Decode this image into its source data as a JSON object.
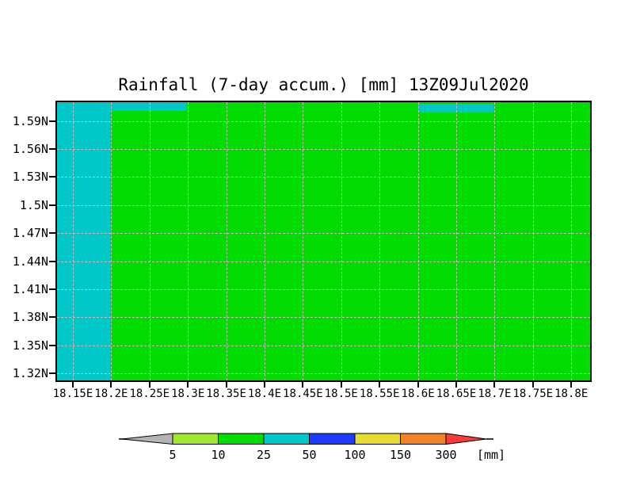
{
  "chart_data": {
    "type": "heatmap",
    "title": "Rainfall (7-day accum.) [mm] 13Z09Jul2020",
    "x_tick_labels": [
      "18.15E",
      "18.2E",
      "18.25E",
      "18.3E",
      "18.35E",
      "18.4E",
      "18.45E",
      "18.5E",
      "18.55E",
      "18.6E",
      "18.65E",
      "18.7E",
      "18.75E",
      "18.8E"
    ],
    "y_tick_labels": [
      "1.59N",
      "1.56N",
      "1.53N",
      "1.5N",
      "1.47N",
      "1.44N",
      "1.41N",
      "1.38N",
      "1.35N",
      "1.32N"
    ],
    "grid": "dashed light-gray gridlines at every tick, both axes",
    "legend_position": "horizontal colorbar at bottom",
    "field": {
      "background": {
        "value_range_mm": "10-25",
        "color": "#00dc00"
      },
      "cyan_regions": [
        {
          "value_range_mm": "25-50",
          "color": "#00c8c8",
          "extent": "west of 18.2E, full latitude range 1.32N-1.59N"
        },
        {
          "value_range_mm": "25-50",
          "color": "#00c8c8",
          "extent": "18.2E-18.3E along the northern edge"
        },
        {
          "value_range_mm": "25-50",
          "color": "#00c8c8",
          "extent": "18.6E-18.7E along the northern edge"
        }
      ]
    },
    "colorbar": {
      "levels": [
        "5",
        "10",
        "25",
        "50",
        "100",
        "150",
        "300"
      ],
      "unit": "[mm]",
      "colors": [
        "#b4b4b4",
        "#a0e632",
        "#00dc00",
        "#00c8c8",
        "#1e3cff",
        "#e6dc32",
        "#f08228",
        "#fa3c3c"
      ]
    }
  }
}
